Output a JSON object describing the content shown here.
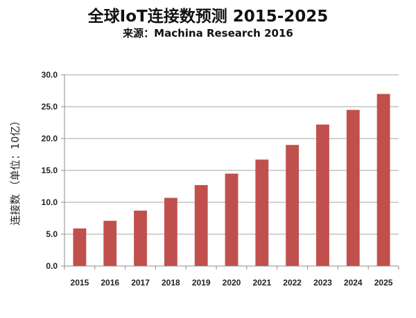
{
  "title": "全球IoT连接数预测 2015-2025",
  "subtitle": "来源：Machina Research 2016",
  "chart_data": {
    "type": "bar",
    "title": "全球IoT连接数预测 2015-2025",
    "subtitle": "来源：Machina Research 2016",
    "xlabel": "",
    "ylabel": "连接数 （单位：10亿）",
    "categories": [
      "2015",
      "2016",
      "2017",
      "2018",
      "2019",
      "2020",
      "2021",
      "2022",
      "2023",
      "2024",
      "2025"
    ],
    "values": [
      5.9,
      7.1,
      8.7,
      10.7,
      12.7,
      14.5,
      16.7,
      19.0,
      22.2,
      24.5,
      27.0
    ],
    "ylim": [
      0,
      30
    ],
    "yticks": [
      "0.0",
      "5.0",
      "10.0",
      "15.0",
      "20.0",
      "25.0",
      "30.0"
    ],
    "grid": true,
    "legend": "none",
    "colors": {
      "bar": "#C0504D",
      "grid": "#A6A6A6",
      "axis": "#8C8C8C"
    }
  }
}
